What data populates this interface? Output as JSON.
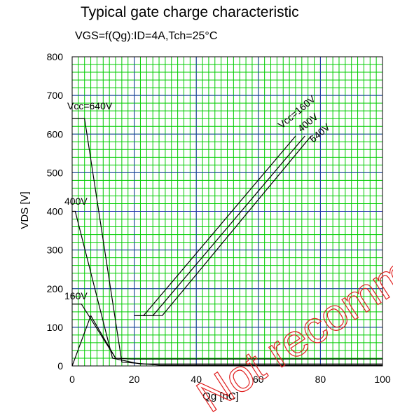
{
  "chart_data": {
    "type": "line",
    "title": "Typical gate charge characteristic",
    "subtitle": "VGS=f(Qg):ID=4A,Tch=25°C",
    "xlabel": "Qg [nC]",
    "ylabel": "VDS [V]",
    "xlim": [
      0,
      100
    ],
    "ylim": [
      0,
      800
    ],
    "x_ticks": [
      "0",
      "20",
      "40",
      "60",
      "80",
      "100"
    ],
    "y_ticks": [
      "0",
      "100",
      "200",
      "300",
      "400",
      "500",
      "600",
      "700",
      "800"
    ],
    "grid": true,
    "series": [
      {
        "name": "Vcc=640V",
        "label_group": "vds",
        "color": "#000000",
        "points": [
          [
            0,
            640
          ],
          [
            4,
            640
          ],
          [
            16,
            10
          ],
          [
            28,
            2
          ],
          [
            100,
            2
          ]
        ]
      },
      {
        "name": "400V",
        "label_group": "vds",
        "color": "#000000",
        "points": [
          [
            0,
            400
          ],
          [
            1,
            400
          ],
          [
            13,
            20
          ],
          [
            22,
            5
          ],
          [
            100,
            5
          ]
        ]
      },
      {
        "name": "160V",
        "label_group": "vds",
        "color": "#000000",
        "points": [
          [
            0,
            160
          ],
          [
            3,
            160
          ],
          [
            14,
            20
          ],
          [
            19,
            18
          ],
          [
            100,
            18
          ]
        ]
      },
      {
        "name": "",
        "label_group": "vds",
        "color": "#000000",
        "points": [
          [
            0,
            0
          ],
          [
            6,
            130
          ],
          [
            14,
            20
          ]
        ]
      },
      {
        "name": "Vcc=160V",
        "label_group": "vgs",
        "color": "#000000",
        "points": [
          [
            20,
            130
          ],
          [
            23,
            130
          ],
          [
            72,
            595
          ]
        ]
      },
      {
        "name": "400V",
        "label_group": "vgs",
        "color": "#000000",
        "points": [
          [
            20,
            130
          ],
          [
            26,
            130
          ],
          [
            75,
            595
          ]
        ]
      },
      {
        "name": "640V",
        "label_group": "vgs",
        "color": "#000000",
        "points": [
          [
            21,
            130
          ],
          [
            29,
            130
          ],
          [
            77,
            595
          ]
        ]
      }
    ],
    "annotations": [
      "Vcc=640V",
      "400V",
      "160V",
      "Vcc=160V",
      "400V",
      "640V"
    ]
  },
  "watermark": {
    "text": "Not recommended",
    "color": "#e02020"
  },
  "colors": {
    "grid_minor": "#00cc00",
    "grid_major": "#1f2fb0",
    "axes": "#000000"
  }
}
